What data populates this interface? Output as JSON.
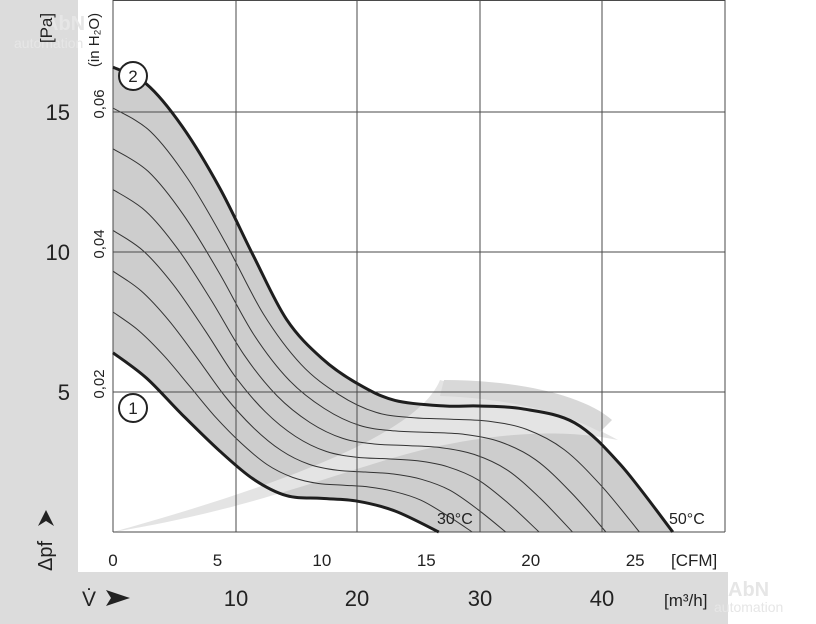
{
  "chart_data": {
    "type": "line",
    "title": "",
    "y_axis_left": {
      "unit": "[Pa]",
      "symbol": "Δpf",
      "ticks": [
        "5",
        "10",
        "15"
      ],
      "range": [
        0,
        19
      ]
    },
    "y_axis_inner": {
      "unit": "(in H₂O)",
      "ticks": [
        "0,02",
        "0,04",
        "0,06"
      ]
    },
    "x_axis_top": {
      "unit": "[CFM]",
      "ticks": [
        "0",
        "5",
        "10",
        "15",
        "20",
        "25"
      ],
      "range": [
        0,
        29.3
      ]
    },
    "x_axis_bottom": {
      "unit": "[m³/h]",
      "symbol": "V̇",
      "ticks": [
        "10",
        "20",
        "30",
        "40"
      ]
    },
    "grid": true,
    "series": [
      {
        "name": "1",
        "x": [
          0,
          1.6,
          3.3,
          5.1,
          6.7,
          8.3,
          10.0,
          11.7,
          13.5,
          15.6
        ],
        "y": [
          6.4,
          5.5,
          4.2,
          2.9,
          1.9,
          1.3,
          1.2,
          1.1,
          0.75,
          0
        ]
      },
      {
        "name": "2",
        "x": [
          0,
          1.6,
          3.3,
          5.1,
          6.7,
          8.3,
          10.0,
          11.7,
          13.5,
          15.9,
          17.5,
          19.6,
          22.1,
          24.3,
          26.8
        ],
        "y": [
          16.6,
          16.0,
          14.5,
          12.3,
          9.9,
          7.6,
          6.2,
          5.3,
          4.7,
          4.5,
          4.5,
          4.4,
          3.9,
          2.4,
          0
        ]
      }
    ],
    "annotations": [
      "30°C",
      "50°C"
    ],
    "curve_labels": [
      "1",
      "2"
    ]
  },
  "watermarks": [
    "AbN",
    "automation"
  ],
  "colors": {
    "band": "#c8c8c8",
    "grid": "#4a4a4a",
    "left_panel": "#dcdcdc",
    "bottom_panel": "#dcdcdc",
    "ink": "#222222"
  }
}
